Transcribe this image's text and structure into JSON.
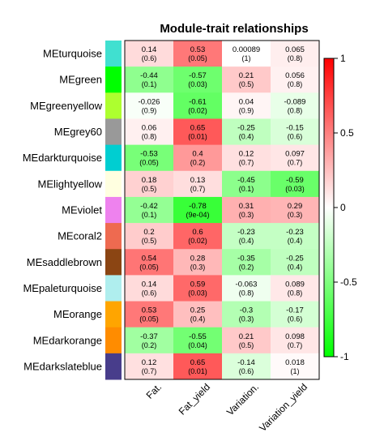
{
  "chart_data": {
    "type": "heatmap",
    "title": "Module-trait relationships",
    "rows": [
      "MEturquoise",
      "MEgreen",
      "MEgreenyellow",
      "MEgrey60",
      "MEdarkturquoise",
      "MElightyellow",
      "MEviolet",
      "MEcoral2",
      "MEsaddlebrown",
      "MEpaleturquoise",
      "MEorange",
      "MEdarkorange",
      "MEdarkslateblue"
    ],
    "row_colors": [
      "#40e0d0",
      "#00ff00",
      "#adff2f",
      "#999999",
      "#00ced1",
      "#ffffe0",
      "#ee82ee",
      "#ee6a50",
      "#8b4513",
      "#afeeee",
      "#ffa500",
      "#ff8c00",
      "#483d8b"
    ],
    "columns": [
      "Fat.",
      "Fat_yield",
      "Variation.",
      "Variation_yield"
    ],
    "values": [
      [
        0.14,
        0.53,
        0.00089,
        0.065
      ],
      [
        -0.44,
        -0.57,
        0.21,
        0.056
      ],
      [
        -0.026,
        -0.61,
        0.04,
        -0.089
      ],
      [
        0.06,
        0.65,
        -0.25,
        -0.15
      ],
      [
        -0.53,
        0.4,
        0.12,
        0.097
      ],
      [
        0.18,
        0.13,
        -0.45,
        -0.59
      ],
      [
        -0.42,
        -0.78,
        0.31,
        0.29
      ],
      [
        0.2,
        0.6,
        -0.23,
        -0.23
      ],
      [
        0.54,
        0.28,
        -0.35,
        -0.25
      ],
      [
        0.14,
        0.59,
        -0.063,
        0.089
      ],
      [
        0.53,
        0.25,
        -0.3,
        -0.17
      ],
      [
        -0.37,
        -0.55,
        0.21,
        0.098
      ],
      [
        0.12,
        0.65,
        -0.14,
        0.018
      ]
    ],
    "labels": [
      [
        "0.14",
        "0.53",
        "0.00089",
        "0.065"
      ],
      [
        "-0.44",
        "-0.57",
        "0.21",
        "0.056"
      ],
      [
        "-0.026",
        "-0.61",
        "0.04",
        "-0.089"
      ],
      [
        "0.06",
        "0.65",
        "-0.25",
        "-0.15"
      ],
      [
        "-0.53",
        "0.4",
        "0.12",
        "0.097"
      ],
      [
        "0.18",
        "0.13",
        "-0.45",
        "-0.59"
      ],
      [
        "-0.42",
        "-0.78",
        "0.31",
        "0.29"
      ],
      [
        "0.2",
        "0.6",
        "-0.23",
        "-0.23"
      ],
      [
        "0.54",
        "0.28",
        "-0.35",
        "-0.25"
      ],
      [
        "0.14",
        "0.59",
        "-0.063",
        "0.089"
      ],
      [
        "0.53",
        "0.25",
        "-0.3",
        "-0.17"
      ],
      [
        "-0.37",
        "-0.55",
        "0.21",
        "0.098"
      ],
      [
        "0.12",
        "0.65",
        "-0.14",
        "0.018"
      ]
    ],
    "pvalues": [
      [
        "(0.6)",
        "(0.05)",
        "(1)",
        "(0.8)"
      ],
      [
        "(0.1)",
        "(0.03)",
        "(0.5)",
        "(0.8)"
      ],
      [
        "(0.9)",
        "(0.02)",
        "(0.9)",
        "(0.8)"
      ],
      [
        "(0.8)",
        "(0.01)",
        "(0.4)",
        "(0.6)"
      ],
      [
        "(0.05)",
        "(0.2)",
        "(0.7)",
        "(0.7)"
      ],
      [
        "(0.5)",
        "(0.7)",
        "(0.1)",
        "(0.03)"
      ],
      [
        "(0.1)",
        "(9e-04)",
        "(0.3)",
        "(0.3)"
      ],
      [
        "(0.5)",
        "(0.02)",
        "(0.4)",
        "(0.4)"
      ],
      [
        "(0.05)",
        "(0.3)",
        "(0.2)",
        "(0.4)"
      ],
      [
        "(0.6)",
        "(0.03)",
        "(0.8)",
        "(0.8)"
      ],
      [
        "(0.05)",
        "(0.4)",
        "(0.3)",
        "(0.6)"
      ],
      [
        "(0.2)",
        "(0.04)",
        "(0.5)",
        "(0.7)"
      ],
      [
        "(0.7)",
        "(0.01)",
        "(0.6)",
        "(1)"
      ]
    ],
    "color_scale": {
      "min": -1,
      "max": 1,
      "low": "#00ff00",
      "mid": "#ffffff",
      "high": "#ff0000"
    },
    "colorbar_ticks": [
      1,
      0.5,
      0,
      -0.5,
      -1
    ],
    "colorbar_tick_labels": [
      "1",
      "0.5",
      "0",
      "-0.5",
      "-1"
    ]
  }
}
